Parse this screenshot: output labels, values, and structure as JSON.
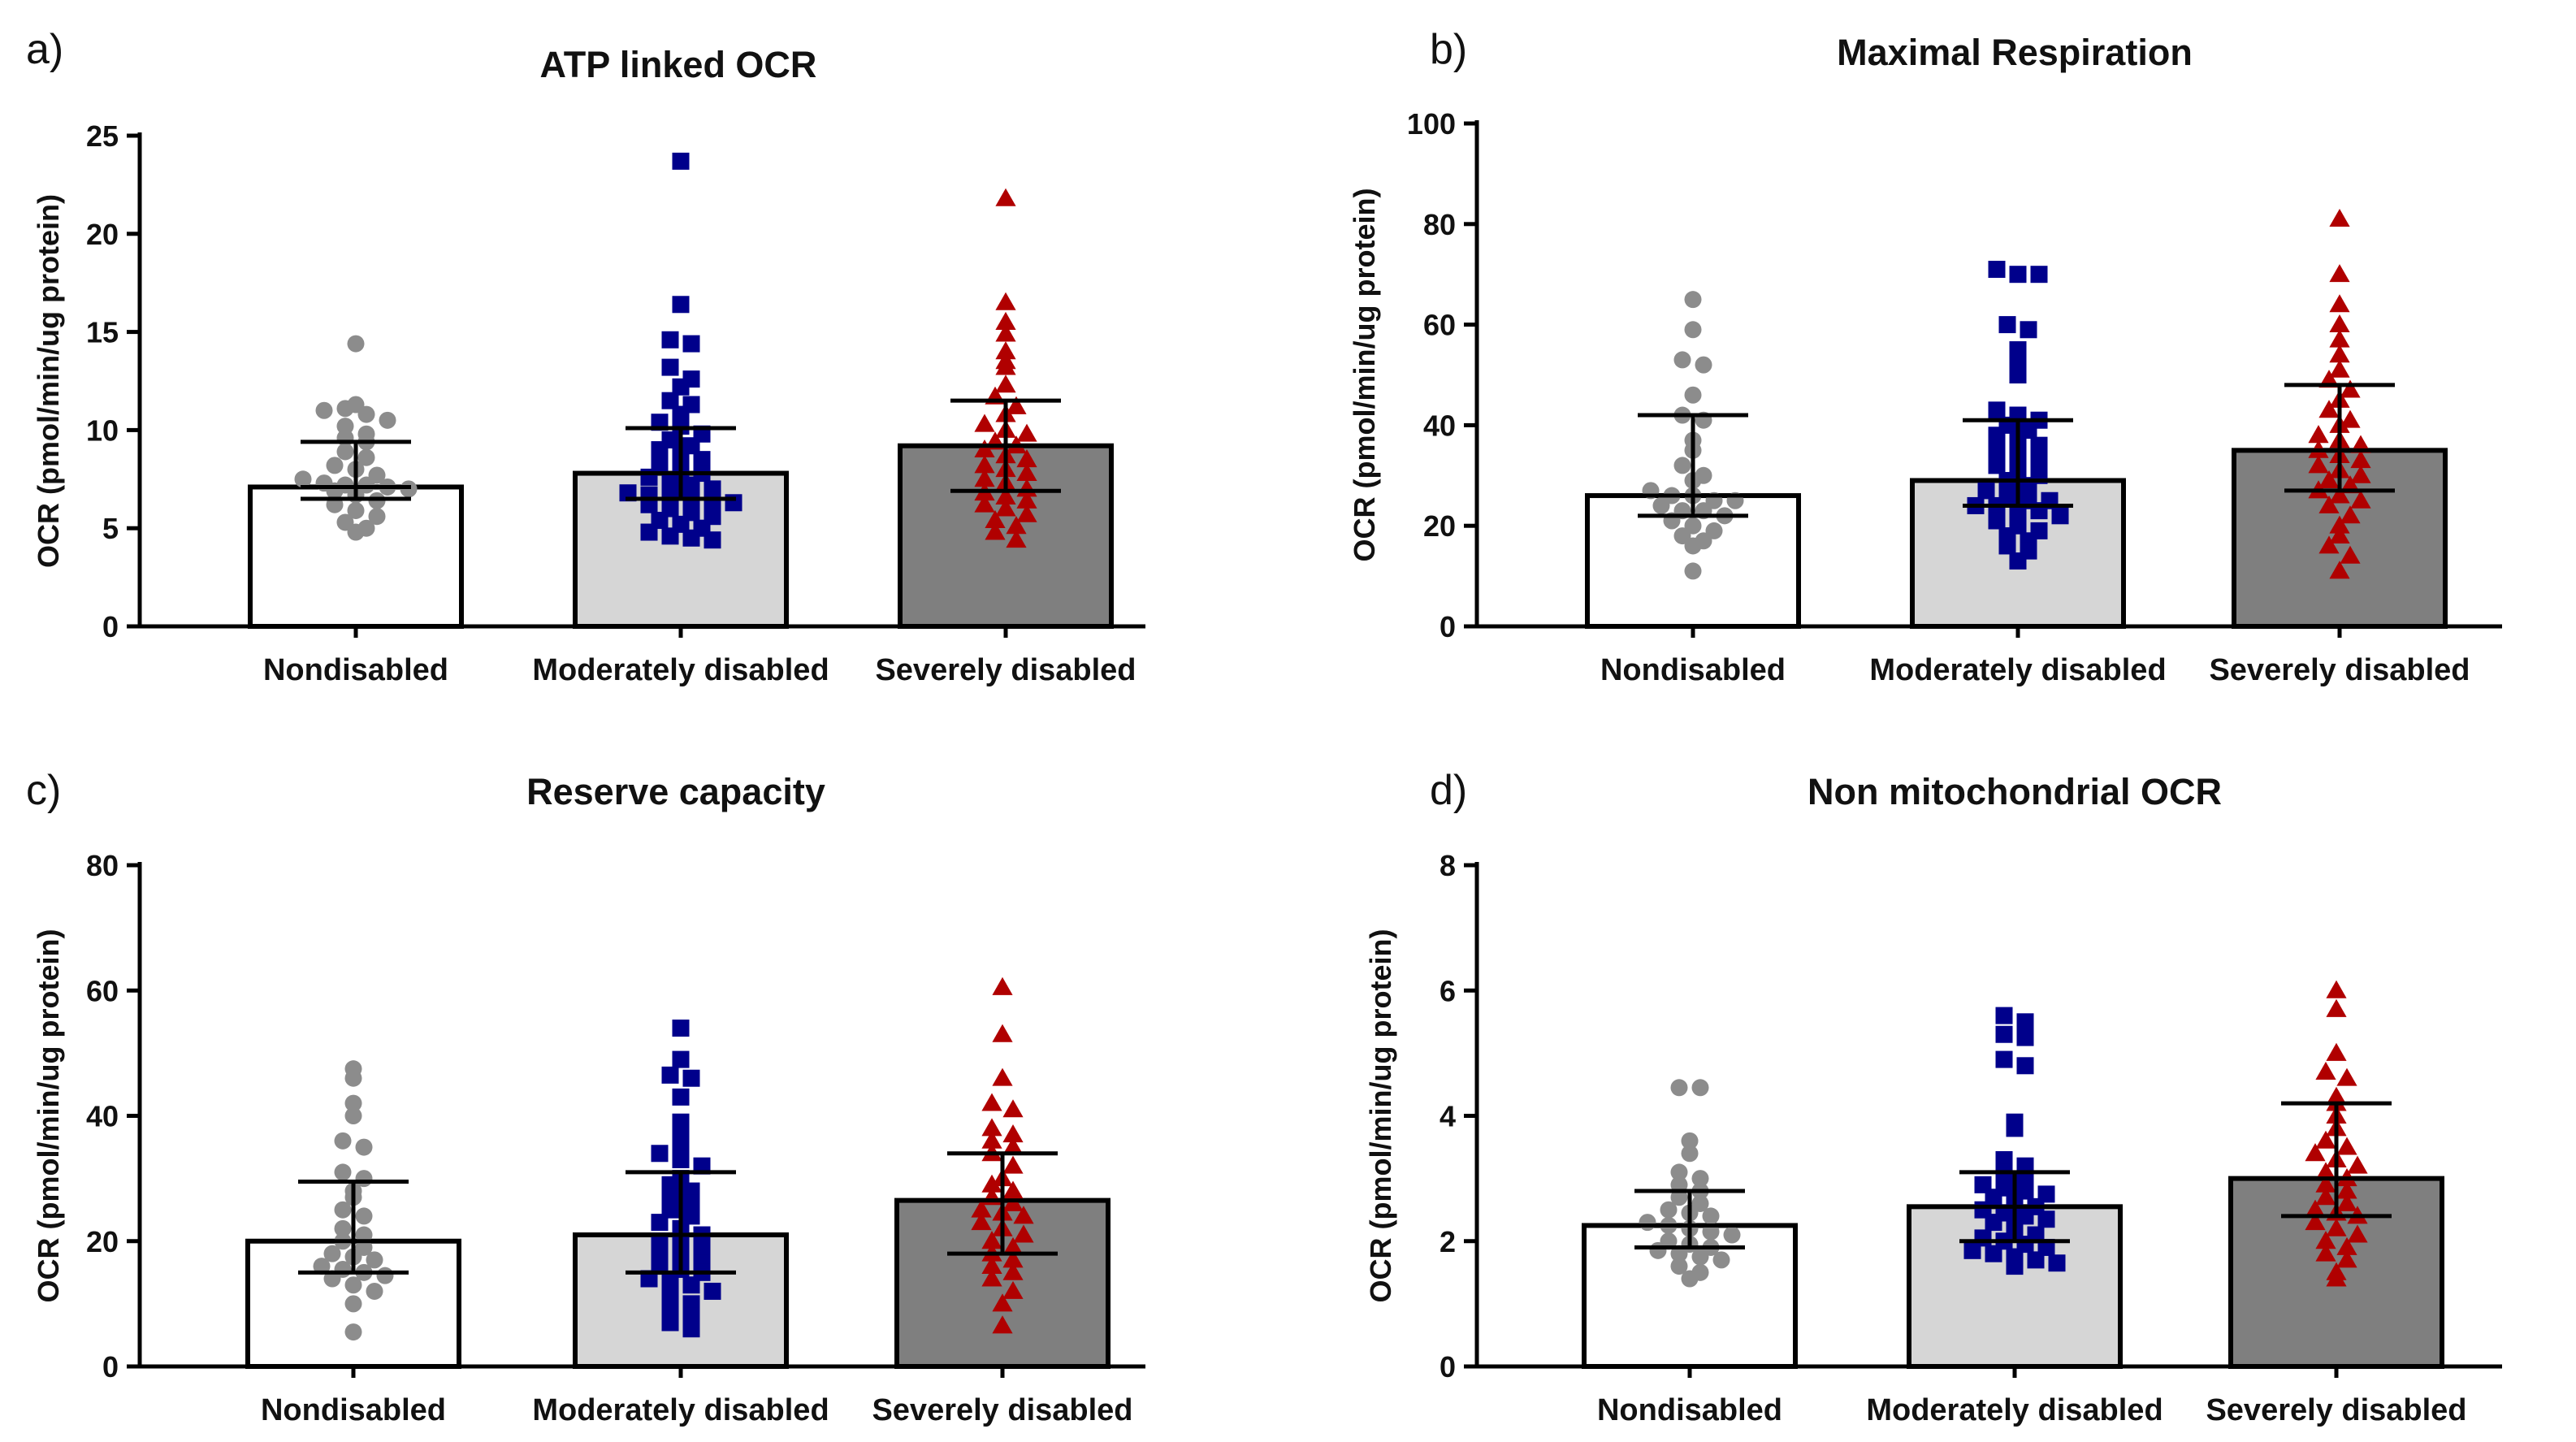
{
  "figure": {
    "background": "#ffffff"
  },
  "group_styles": [
    {
      "name": "Nondisabled",
      "bar_fill": "#ffffff",
      "point_color": "#8c8c8c",
      "marker": "circle"
    },
    {
      "name": "Moderately disabled",
      "bar_fill": "#d6d6d6",
      "point_color": "#00008b",
      "marker": "square"
    },
    {
      "name": "Severely disabled",
      "bar_fill": "#7f7f7f",
      "point_color": "#b00000",
      "marker": "triangle"
    }
  ],
  "chart_data": [
    {
      "id": "a",
      "panel_label": "a)",
      "type": "bar",
      "title": "ATP linked OCR",
      "ylabel": "OCR (pmol/min/ug protein)",
      "xlabel": "",
      "ylim": [
        0,
        25
      ],
      "yticks": [
        0,
        5,
        10,
        15,
        20,
        25
      ],
      "categories": [
        "Nondisabled",
        "Moderately disabled",
        "Severely disabled"
      ],
      "values": [
        7.1,
        7.8,
        9.2
      ],
      "error_low": [
        6.5,
        6.5,
        6.9
      ],
      "error_high": [
        9.4,
        10.1,
        11.5
      ],
      "points": [
        [
          14.4,
          11.3,
          11.0,
          11.1,
          10.8,
          10.5,
          10.2,
          9.8,
          9.6,
          9.4,
          8.9,
          8.6,
          8.2,
          8.0,
          7.7,
          7.5,
          7.3,
          7.2,
          7.2,
          7.1,
          7.0,
          6.9,
          6.7,
          6.4,
          6.2,
          5.9,
          5.6,
          5.3,
          5.0,
          4.8
        ],
        [
          23.7,
          16.4,
          14.6,
          14.4,
          13.2,
          12.6,
          12.2,
          11.5,
          11.3,
          10.8,
          10.4,
          10.2,
          9.8,
          9.5,
          9.2,
          9.0,
          8.8,
          8.5,
          8.2,
          8.0,
          7.8,
          7.6,
          7.4,
          7.2,
          7.0,
          6.8,
          6.7,
          6.6,
          6.5,
          6.4,
          6.3,
          6.2,
          6.0,
          5.8,
          5.6,
          5.4,
          5.2,
          5.0,
          4.8,
          4.6,
          4.5,
          4.4
        ],
        [
          21.8,
          16.5,
          15.5,
          14.9,
          14.0,
          13.5,
          13.2,
          12.3,
          11.7,
          11.2,
          10.8,
          10.3,
          10.0,
          9.8,
          9.4,
          9.2,
          9.0,
          8.7,
          8.5,
          8.2,
          8.0,
          7.8,
          7.5,
          7.3,
          7.0,
          6.8,
          6.6,
          6.4,
          6.2,
          6.0,
          5.7,
          5.4,
          5.1,
          4.8,
          4.4
        ]
      ]
    },
    {
      "id": "b",
      "panel_label": "b)",
      "type": "bar",
      "title": "Maximal Respiration",
      "ylabel": "OCR (pmol/min/ug protein)",
      "xlabel": "",
      "ylim": [
        0,
        100
      ],
      "yticks": [
        0,
        20,
        40,
        60,
        80,
        100
      ],
      "categories": [
        "Nondisabled",
        "Moderately disabled",
        "Severely disabled"
      ],
      "values": [
        26,
        29,
        35
      ],
      "error_low": [
        22,
        24,
        27
      ],
      "error_high": [
        42,
        41,
        48
      ],
      "points": [
        [
          65,
          59,
          53,
          52,
          46,
          42,
          41,
          37,
          35,
          32,
          30,
          29,
          27,
          26,
          26,
          25,
          25,
          24,
          23,
          23,
          22,
          21,
          20,
          19,
          18,
          17,
          16,
          11
        ],
        [
          71,
          70,
          70,
          60,
          59,
          55,
          53,
          50,
          43,
          42,
          41,
          40,
          39,
          38,
          37,
          36,
          35,
          34,
          33,
          32,
          31,
          30,
          29,
          28,
          27,
          26,
          25,
          25,
          24,
          24,
          23,
          23,
          22,
          21,
          20,
          19,
          18,
          17,
          16,
          15,
          13
        ],
        [
          81,
          70,
          64,
          60,
          57,
          54,
          51,
          49,
          47,
          45,
          43,
          41,
          40,
          38,
          37,
          36,
          35,
          34,
          33,
          32,
          31,
          30,
          29,
          28,
          27,
          26,
          25,
          24,
          22,
          20,
          18,
          16,
          14,
          11
        ]
      ]
    },
    {
      "id": "c",
      "panel_label": "c)",
      "type": "bar",
      "title": "Reserve capacity",
      "ylabel": "OCR (pmol/min/ug protein)",
      "xlabel": "",
      "ylim": [
        0,
        80
      ],
      "yticks": [
        0,
        20,
        40,
        60,
        80
      ],
      "categories": [
        "Nondisabled",
        "Moderately disabled",
        "Severely disabled"
      ],
      "values": [
        20,
        21,
        26.5
      ],
      "error_low": [
        15,
        15,
        18
      ],
      "error_high": [
        29.5,
        31,
        34
      ],
      "points": [
        [
          47.5,
          46,
          42,
          40,
          36,
          35,
          31,
          30,
          28,
          27,
          25,
          24,
          22,
          21,
          20,
          19,
          18,
          17.5,
          17,
          16,
          15.5,
          15,
          14.5,
          14,
          13,
          12,
          10,
          5.5
        ],
        [
          54,
          49,
          46.5,
          46,
          43,
          39,
          37,
          35,
          34,
          33,
          32,
          30,
          29,
          28,
          27,
          26,
          25,
          24,
          23,
          22,
          21,
          20,
          19.5,
          19,
          18,
          17,
          16.5,
          16,
          15.5,
          15,
          14,
          13.5,
          13,
          12,
          11,
          10,
          9,
          8,
          7,
          6
        ],
        [
          60.5,
          53,
          46,
          42,
          41,
          38,
          37,
          36,
          35,
          34,
          32,
          30,
          29,
          28,
          27,
          26,
          25,
          24.5,
          24,
          23,
          22,
          21,
          20,
          19,
          18,
          17,
          16,
          15,
          14,
          12,
          10,
          6.5
        ]
      ]
    },
    {
      "id": "d",
      "panel_label": "d)",
      "type": "bar",
      "title": "Non mitochondrial OCR",
      "ylabel": "OCR (pmol/min/ug protein)",
      "xlabel": "",
      "ylim": [
        0,
        8
      ],
      "yticks": [
        0,
        2,
        4,
        6,
        8
      ],
      "categories": [
        "Nondisabled",
        "Moderately disabled",
        "Severely disabled"
      ],
      "values": [
        2.25,
        2.55,
        3.0
      ],
      "error_low": [
        1.9,
        2.0,
        2.4
      ],
      "error_high": [
        2.8,
        3.1,
        4.2
      ],
      "points": [
        [
          4.45,
          4.45,
          3.6,
          3.4,
          3.1,
          3.0,
          2.9,
          2.8,
          2.7,
          2.6,
          2.5,
          2.45,
          2.4,
          2.3,
          2.25,
          2.2,
          2.15,
          2.1,
          2.0,
          1.95,
          1.9,
          1.85,
          1.8,
          1.75,
          1.7,
          1.6,
          1.5,
          1.4
        ],
        [
          5.6,
          5.5,
          5.3,
          5.25,
          4.9,
          4.8,
          3.9,
          3.8,
          3.3,
          3.2,
          3.1,
          3.0,
          2.9,
          2.85,
          2.8,
          2.75,
          2.7,
          2.6,
          2.55,
          2.5,
          2.45,
          2.4,
          2.35,
          2.3,
          2.2,
          2.1,
          2.05,
          2.0,
          1.95,
          1.9,
          1.85,
          1.8,
          1.75,
          1.7,
          1.65,
          1.6
        ],
        [
          6.0,
          5.7,
          5.0,
          4.7,
          4.6,
          4.3,
          4.2,
          4.0,
          3.8,
          3.6,
          3.5,
          3.4,
          3.3,
          3.2,
          3.1,
          3.0,
          2.9,
          2.8,
          2.7,
          2.6,
          2.5,
          2.45,
          2.4,
          2.3,
          2.2,
          2.1,
          2.0,
          1.9,
          1.8,
          1.7,
          1.5,
          1.4
        ]
      ]
    }
  ]
}
